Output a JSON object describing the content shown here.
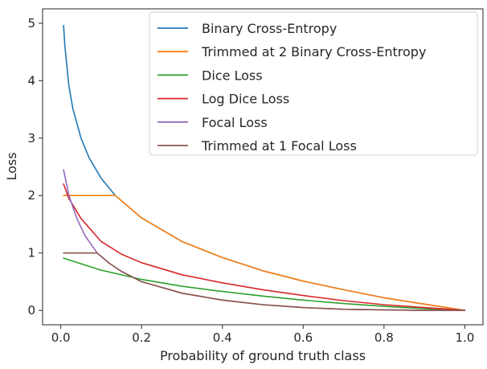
{
  "chart_data": {
    "type": "line",
    "title": "",
    "xlabel": "Probability of ground truth class",
    "ylabel": "Loss",
    "xlim": [
      -0.045,
      1.045
    ],
    "ylim": [
      -0.25,
      5.25
    ],
    "xticks": [
      "0.0",
      "0.2",
      "0.4",
      "0.6",
      "0.8",
      "1.0"
    ],
    "yticks": [
      "0",
      "1",
      "2",
      "3",
      "4",
      "5"
    ],
    "grid": false,
    "legend_position": "top-right",
    "series": [
      {
        "name": "Binary Cross-Entropy",
        "color": "#1f77b4",
        "x": [
          0.007,
          0.01,
          0.02,
          0.03,
          0.05,
          0.07,
          0.1,
          0.135,
          0.2,
          0.3,
          0.4,
          0.5,
          0.6,
          0.7,
          0.8,
          0.9,
          1.0
        ],
        "y": [
          4.96,
          4.61,
          3.91,
          3.51,
          3.0,
          2.66,
          2.3,
          2.0,
          1.61,
          1.2,
          0.92,
          0.69,
          0.51,
          0.36,
          0.22,
          0.11,
          0.0
        ]
      },
      {
        "name": "Trimmed at 2 Binary Cross-Entropy",
        "color": "#ff7f0e",
        "x": [
          0.007,
          0.135,
          0.2,
          0.3,
          0.4,
          0.5,
          0.6,
          0.7,
          0.8,
          0.9,
          1.0
        ],
        "y": [
          2.0,
          2.0,
          1.61,
          1.2,
          0.92,
          0.69,
          0.51,
          0.36,
          0.22,
          0.11,
          0.0
        ]
      },
      {
        "name": "Dice Loss",
        "color": "#2ca02c",
        "x": [
          0.007,
          0.1,
          0.2,
          0.3,
          0.4,
          0.5,
          0.6,
          0.7,
          0.8,
          0.9,
          1.0
        ],
        "y": [
          0.91,
          0.7,
          0.54,
          0.42,
          0.33,
          0.25,
          0.18,
          0.12,
          0.07,
          0.03,
          0.0
        ]
      },
      {
        "name": "Log Dice Loss",
        "color": "#d62728",
        "x": [
          0.007,
          0.02,
          0.05,
          0.1,
          0.15,
          0.2,
          0.3,
          0.4,
          0.5,
          0.6,
          0.7,
          0.8,
          0.9,
          1.0
        ],
        "y": [
          2.2,
          1.95,
          1.6,
          1.2,
          0.98,
          0.83,
          0.62,
          0.48,
          0.36,
          0.26,
          0.17,
          0.1,
          0.05,
          0.0
        ]
      },
      {
        "name": "Focal Loss",
        "color": "#9467bd",
        "x": [
          0.007,
          0.02,
          0.04,
          0.06,
          0.09,
          0.12,
          0.15,
          0.2,
          0.3,
          0.4,
          0.5,
          0.6,
          0.7,
          0.8,
          0.9,
          1.0
        ],
        "y": [
          2.45,
          2.0,
          1.6,
          1.3,
          1.0,
          0.82,
          0.68,
          0.5,
          0.3,
          0.18,
          0.1,
          0.05,
          0.02,
          0.01,
          0.0,
          0.0
        ]
      },
      {
        "name": "Trimmed at 1 Focal Loss",
        "color": "#8c564b",
        "x": [
          0.007,
          0.09,
          0.12,
          0.15,
          0.2,
          0.3,
          0.4,
          0.5,
          0.6,
          0.7,
          0.8,
          0.9,
          1.0
        ],
        "y": [
          1.0,
          1.0,
          0.82,
          0.68,
          0.5,
          0.3,
          0.18,
          0.1,
          0.05,
          0.02,
          0.01,
          0.0,
          0.0
        ]
      }
    ]
  }
}
